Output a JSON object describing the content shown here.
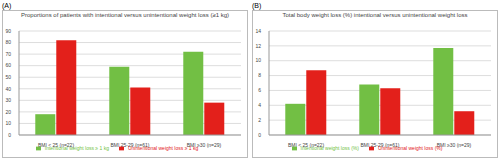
{
  "chart_data": [
    {
      "type": "bar",
      "panel_label": "(A)",
      "title": "Proportions of patients with intentional versus unintentional weight loss (≥1 kg)",
      "categories": [
        "BMI < 25 (n=22)",
        "BMI 25-29 (n=61)",
        "BMI ≥30 (n=29)"
      ],
      "series": [
        {
          "name": "Intentional weight loss ≥ 1 kg",
          "color": "#72bf44",
          "values": [
            18,
            59,
            72
          ]
        },
        {
          "name": "Unintentional weight loss ≥ 1 kg",
          "color": "#e3201b",
          "values": [
            82,
            41,
            28
          ]
        }
      ],
      "ylim": [
        0,
        90
      ],
      "yticks": [
        0,
        10,
        20,
        30,
        40,
        50,
        60,
        70,
        80,
        90
      ],
      "grid": true,
      "legend": "bottom"
    },
    {
      "type": "bar",
      "panel_label": "(B)",
      "title": "Total body weight loss (%) intentional versus unintentional weight loss",
      "categories": [
        "BMI < 25 (n=22)",
        "BMI 25-29 (n=61)",
        "BMI ≥30 (n=29)"
      ],
      "series": [
        {
          "name": "Intentional weight loss (%)",
          "color": "#72bf44",
          "values": [
            4.2,
            6.8,
            11.7
          ]
        },
        {
          "name": "Unintentional weight loss (%)",
          "color": "#e3201b",
          "values": [
            8.7,
            6.3,
            3.2
          ]
        }
      ],
      "ylim": [
        0,
        14
      ],
      "yticks": [
        0,
        2,
        4,
        6,
        8,
        10,
        12,
        14
      ],
      "grid": true,
      "legend": "bottom"
    }
  ]
}
